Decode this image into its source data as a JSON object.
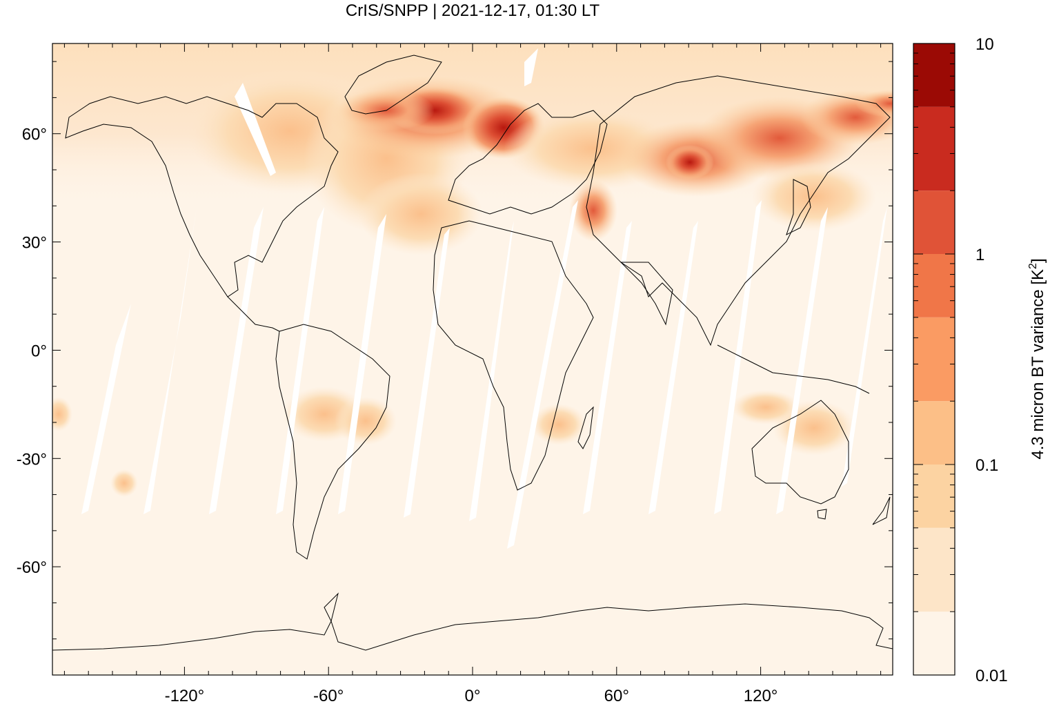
{
  "title": "CrIS/SNPP | 2021-12-17, 01:30 LT",
  "chart_data": {
    "type": "heatmap",
    "title": "CrIS/SNPP | 2021-12-17, 01:30 LT",
    "projection": "equirectangular",
    "xlim": [
      -175,
      175
    ],
    "ylim": [
      -90,
      85
    ],
    "x_ticks": [
      -120,
      -60,
      0,
      60,
      120
    ],
    "x_tick_labels": [
      "-120°",
      "-60°",
      "0°",
      "60°",
      "120°"
    ],
    "y_ticks": [
      60,
      30,
      0,
      -30,
      -60
    ],
    "y_tick_labels": [
      "60°",
      "30°",
      "0°",
      "-30°",
      "-60°"
    ],
    "colorbar": {
      "label": "4.3 micron BT variance [K²]",
      "label_main": "4.3 micron BT variance [K",
      "label_sup": "2",
      "label_end": "]",
      "scale": "log",
      "range": [
        0.01,
        10
      ],
      "tick_values": [
        0.01,
        0.1,
        1,
        10
      ],
      "tick_labels": [
        "0.01",
        "0.1",
        "1",
        "10"
      ],
      "boundaries": [
        0.01,
        0.02,
        0.05,
        0.1,
        0.2,
        0.5,
        1,
        2,
        5,
        10
      ],
      "colors": [
        "#fef4e8",
        "#fde5c8",
        "#fcd3a2",
        "#fcbf87",
        "#fa9b63",
        "#f07648",
        "#e05337",
        "#c92b1f",
        "#9b0a05"
      ]
    },
    "features": {
      "land_outline": "coastlines",
      "data_gaps": "satellite swath gaps"
    },
    "high_variance_regions": [
      {
        "lon_range": [
          -50,
          30
        ],
        "lat_range": [
          55,
          72
        ],
        "level": "2-10"
      },
      {
        "lon_range": [
          50,
          150
        ],
        "lat_range": [
          48,
          65
        ],
        "level": "1-5"
      },
      {
        "lon_range": [
          45,
          55
        ],
        "lat_range": [
          38,
          48
        ],
        "level": "0.5-2"
      }
    ]
  }
}
